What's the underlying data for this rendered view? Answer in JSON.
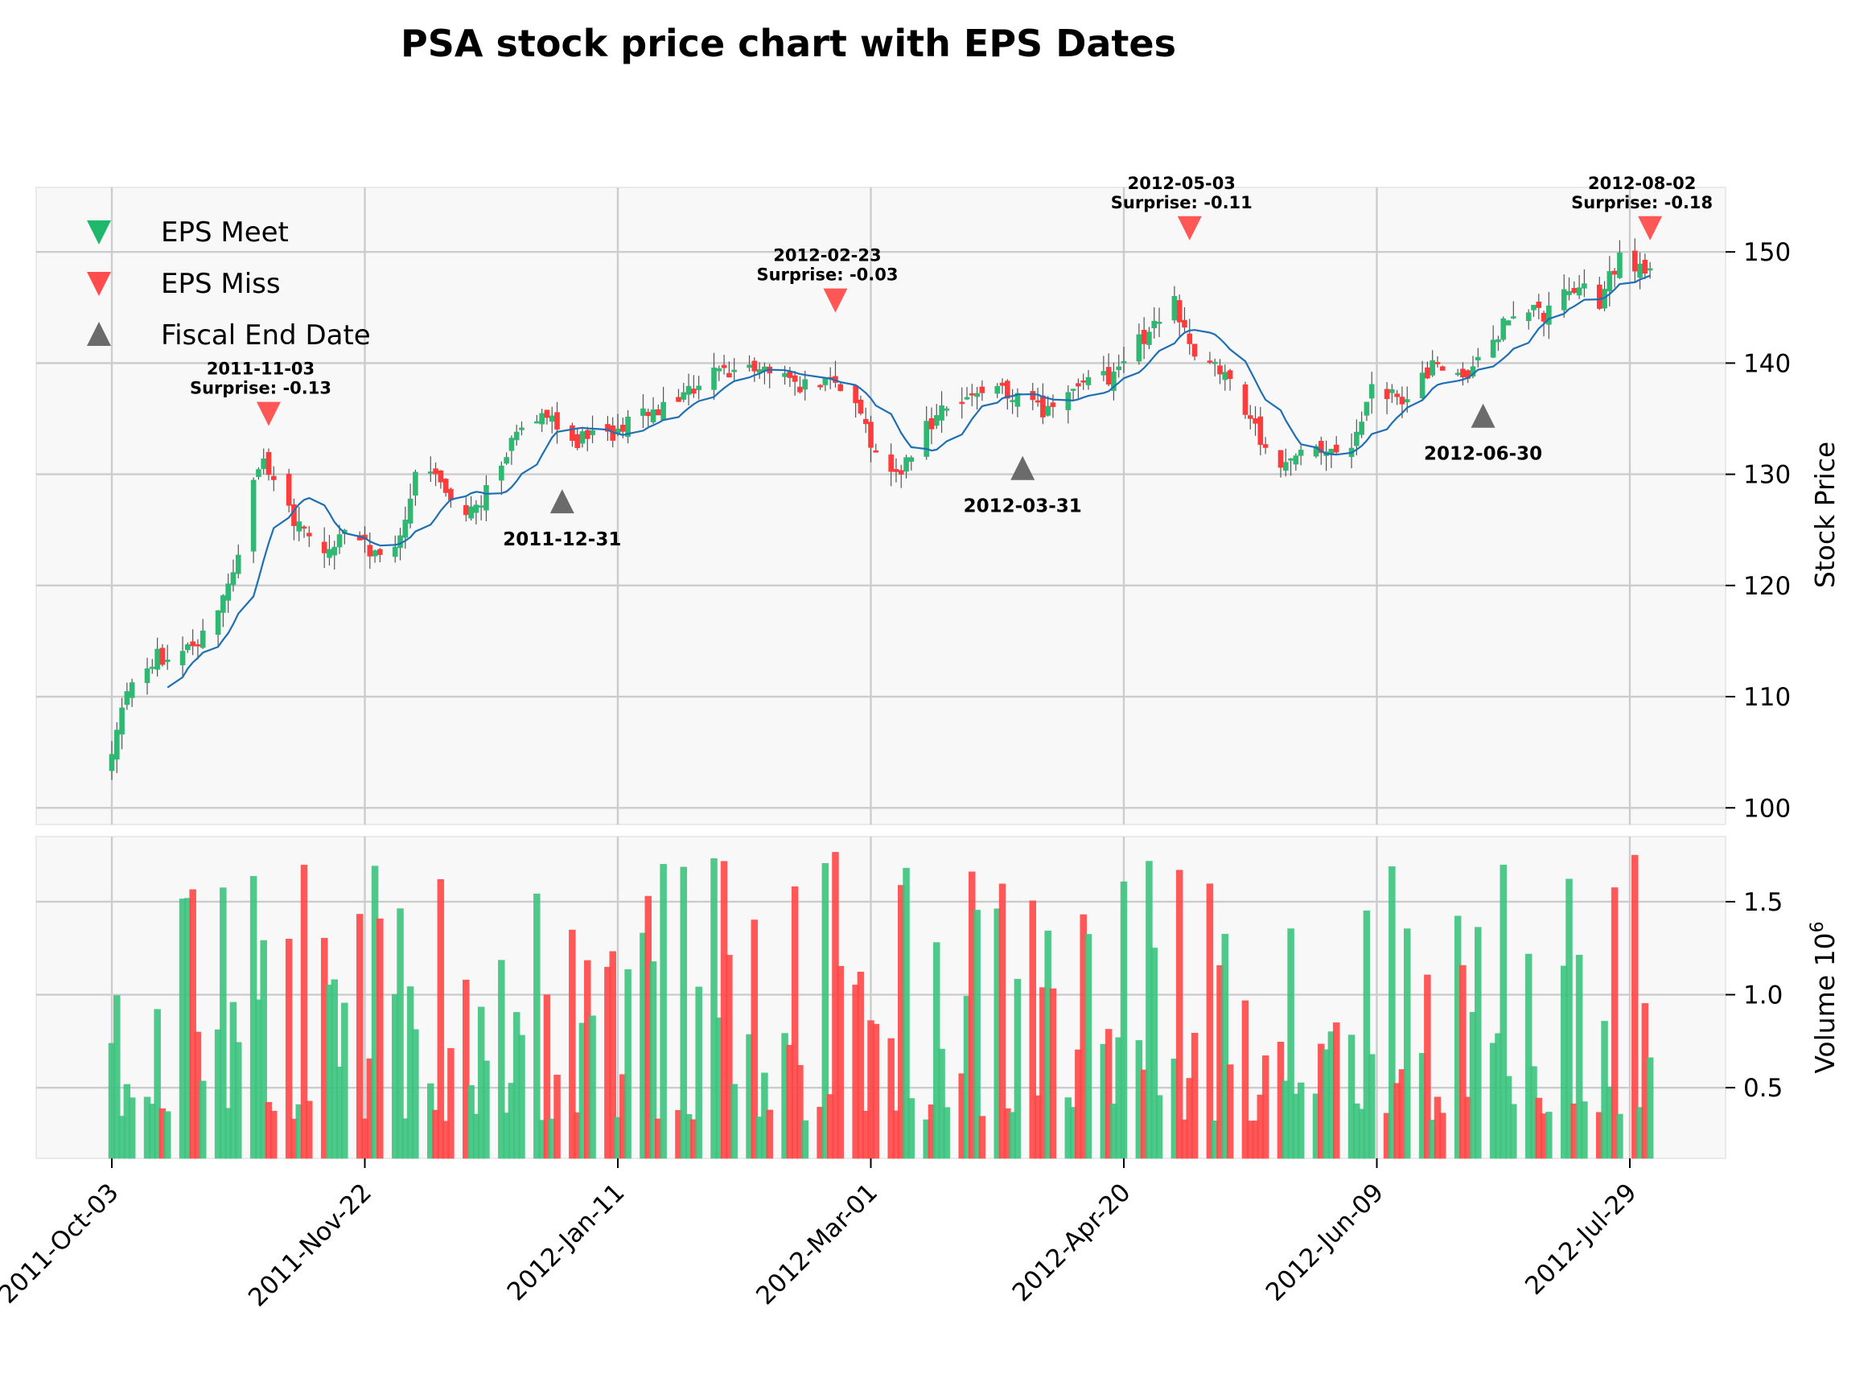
{
  "chart_data": {
    "type": "candlestick",
    "title": "PSA stock price chart with EPS Dates",
    "price_axis": {
      "label": "Stock Price",
      "ylim": [
        98.5,
        155.8
      ],
      "ticks": [
        100,
        110,
        120,
        130,
        140,
        150
      ]
    },
    "volume_axis": {
      "label": "Volume  10",
      "label_exponent": "6",
      "ylim": [
        0.12,
        1.85
      ],
      "ticks": [
        0.5,
        1.0,
        1.5
      ],
      "tick_labels": [
        "0.5",
        "1.0",
        "1.5"
      ]
    },
    "x_axis": {
      "start_date": "2011-10-03",
      "end_date": "2012-08-02",
      "tick_dates": [
        "2011-10-03",
        "2011-11-22",
        "2012-01-11",
        "2012-03-01",
        "2012-04-20",
        "2012-06-09",
        "2012-07-29"
      ],
      "tick_labels": [
        "2011-Oct-03",
        "2011-Nov-22",
        "2012-Jan-11",
        "2012-Mar-01",
        "2012-Apr-20",
        "2012-Jun-09",
        "2012-Jul-29"
      ]
    },
    "legend": {
      "placement": "upper-left",
      "entries": [
        {
          "label": "EPS Meet",
          "marker": "triangle-down",
          "color": "#1fb86a"
        },
        {
          "label": "EPS Miss",
          "marker": "triangle-down",
          "color": "#ff4d4d"
        },
        {
          "label": "Fiscal End Date",
          "marker": "triangle-up",
          "color": "#6b6b6b"
        }
      ]
    },
    "eps_events": [
      {
        "date": "2011-11-03",
        "label_date": "2011-11-03",
        "label_surprise": "Surprise: -0.13",
        "result": "miss",
        "price": 135.5
      },
      {
        "date": "2012-02-23",
        "label_date": "2012-02-23",
        "label_surprise": "Surprise: -0.03",
        "result": "miss",
        "price": 145.7
      },
      {
        "date": "2012-05-03",
        "label_date": "2012-05-03",
        "label_surprise": "Surprise: -0.11",
        "result": "miss",
        "price": 152.2
      },
      {
        "date": "2012-08-02",
        "label_date": "2012-08-02",
        "label_surprise": "Surprise: -0.18",
        "result": "miss",
        "price": 152.2
      }
    ],
    "fiscal_end_dates": [
      {
        "date": "2011-12-31",
        "label": "2011-12-31",
        "price": 127.5
      },
      {
        "date": "2012-03-31",
        "label": "2012-03-31",
        "price": 130.5
      },
      {
        "date": "2012-06-30",
        "label": "2012-06-30",
        "price": 135.2
      }
    ],
    "close_anchors": [
      [
        "2011-10-03",
        105.5
      ],
      [
        "2011-10-06",
        110.0
      ],
      [
        "2011-10-12",
        113.5
      ],
      [
        "2011-10-19",
        114.5
      ],
      [
        "2011-10-24",
        117.0
      ],
      [
        "2011-10-28",
        122.5
      ],
      [
        "2011-10-31",
        129.5
      ],
      [
        "2011-11-02",
        131.5
      ],
      [
        "2011-11-04",
        129.0
      ],
      [
        "2011-11-09",
        125.0
      ],
      [
        "2011-11-14",
        123.5
      ],
      [
        "2011-11-18",
        124.5
      ],
      [
        "2011-11-25",
        122.5
      ],
      [
        "2011-11-29",
        124.0
      ],
      [
        "2011-12-02",
        130.0
      ],
      [
        "2011-12-07",
        129.5
      ],
      [
        "2011-12-12",
        126.0
      ],
      [
        "2011-12-16",
        128.5
      ],
      [
        "2011-12-21",
        133.0
      ],
      [
        "2011-12-27",
        135.5
      ],
      [
        "2011-12-30",
        134.0
      ],
      [
        "2012-01-03",
        133.0
      ],
      [
        "2012-01-09",
        133.5
      ],
      [
        "2012-01-13",
        134.5
      ],
      [
        "2012-01-20",
        136.0
      ],
      [
        "2012-01-26",
        137.5
      ],
      [
        "2012-01-31",
        140.0
      ],
      [
        "2012-02-03",
        139.0
      ],
      [
        "2012-02-09",
        139.5
      ],
      [
        "2012-02-16",
        138.0
      ],
      [
        "2012-02-22",
        138.5
      ],
      [
        "2012-02-27",
        136.0
      ],
      [
        "2012-03-02",
        132.0
      ],
      [
        "2012-03-06",
        130.0
      ],
      [
        "2012-03-09",
        131.5
      ],
      [
        "2012-03-15",
        136.5
      ],
      [
        "2012-03-21",
        137.0
      ],
      [
        "2012-03-27",
        137.5
      ],
      [
        "2012-04-04",
        135.5
      ],
      [
        "2012-04-10",
        138.0
      ],
      [
        "2012-04-18",
        139.0
      ],
      [
        "2012-04-24",
        142.5
      ],
      [
        "2012-04-30",
        145.5
      ],
      [
        "2012-05-04",
        141.0
      ],
      [
        "2012-05-10",
        139.5
      ],
      [
        "2012-05-16",
        134.0
      ],
      [
        "2012-05-21",
        130.5
      ],
      [
        "2012-05-25",
        132.5
      ],
      [
        "2012-05-31",
        132.0
      ],
      [
        "2012-06-05",
        133.0
      ],
      [
        "2012-06-08",
        137.5
      ],
      [
        "2012-06-14",
        137.0
      ],
      [
        "2012-06-20",
        139.5
      ],
      [
        "2012-06-27",
        139.0
      ],
      [
        "2012-07-02",
        142.0
      ],
      [
        "2012-07-06",
        144.5
      ],
      [
        "2012-07-12",
        144.5
      ],
      [
        "2012-07-18",
        147.0
      ],
      [
        "2012-07-23",
        145.5
      ],
      [
        "2012-07-27",
        149.5
      ],
      [
        "2012-08-02",
        148.5
      ]
    ],
    "volume_range_millions": [
      0.32,
      1.77
    ],
    "moving_average": {
      "color": "#1f6fb4"
    },
    "colors": {
      "up": "#2eb872",
      "down": "#ff3b3b",
      "background": "#f8f8f8",
      "grid": "#cccccc"
    }
  }
}
